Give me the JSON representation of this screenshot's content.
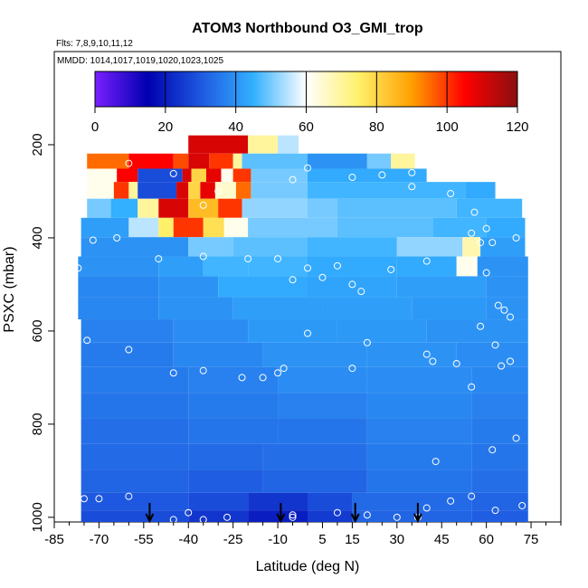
{
  "chart_data": {
    "type": "heatmap",
    "title": "ATOM3 Northbound O3_GMI_trop",
    "flights_label": "Flts: 7,8,9,10,11,12",
    "dates_label": "MMDD: 1014,1017,1019,1020,1023,1025",
    "xlabel": "Latitude (deg N)",
    "ylabel": "PSXC (mbar)",
    "xlim": [
      -85,
      85
    ],
    "ylim": [
      1010,
      0
    ],
    "x_ticks": [
      -85,
      -70,
      -55,
      -40,
      -25,
      -10,
      5,
      15,
      30,
      45,
      60,
      75
    ],
    "y_ticks": [
      200,
      400,
      600,
      800,
      1000
    ],
    "colorbar": {
      "min": 0,
      "max": 120,
      "ticks": [
        0,
        20,
        40,
        60,
        80,
        100,
        120
      ],
      "colors": [
        "#7a1fff",
        "#0000b0",
        "#1e58e0",
        "#33b0ff",
        "#ffffff",
        "#fff06a",
        "#ffa000",
        "#ff0000",
        "#8a0f0f"
      ]
    },
    "arrows_lat": [
      -53,
      -9,
      16,
      37
    ],
    "rows": [
      {
        "p": 200,
        "segments": [
          [
            -40,
            -20,
            110
          ],
          [
            -20,
            -10,
            70
          ],
          [
            -10,
            -3,
            55
          ]
        ]
      },
      {
        "p": 238,
        "segments": [
          [
            -74,
            -60,
            95
          ],
          [
            -60,
            -45,
            105
          ],
          [
            -45,
            -40,
            98
          ],
          [
            -40,
            -33,
            110
          ],
          [
            -33,
            -25,
            100
          ],
          [
            -25,
            -22,
            70
          ],
          [
            -22,
            0,
            48
          ],
          [
            0,
            20,
            40
          ],
          [
            20,
            28,
            50
          ],
          [
            28,
            36,
            70
          ]
        ]
      },
      {
        "p": 265,
        "segments": [
          [
            -74,
            -64,
            62
          ],
          [
            -64,
            -57,
            105
          ],
          [
            -57,
            -42,
            28
          ],
          [
            -42,
            -39,
            110
          ],
          [
            -39,
            -34,
            80
          ],
          [
            -34,
            -29,
            108
          ],
          [
            -29,
            -25,
            62
          ],
          [
            -25,
            -19,
            100
          ],
          [
            -19,
            0,
            50
          ],
          [
            0,
            40,
            44
          ],
          [
            40,
            53,
            60
          ]
        ]
      },
      {
        "p": 295,
        "segments": [
          [
            -74,
            -65,
            62
          ],
          [
            -65,
            -60,
            100
          ],
          [
            -60,
            -57,
            70
          ],
          [
            -57,
            -44,
            28
          ],
          [
            -44,
            -40,
            110
          ],
          [
            -40,
            -36,
            80
          ],
          [
            -36,
            -31,
            108
          ],
          [
            -31,
            -24,
            65
          ],
          [
            -24,
            -19,
            95
          ],
          [
            -19,
            0,
            50
          ],
          [
            0,
            53,
            46
          ],
          [
            53,
            63,
            44
          ]
        ]
      },
      {
        "p": 337,
        "segments": [
          [
            -74,
            -66,
            50
          ],
          [
            -66,
            -57,
            45
          ],
          [
            -57,
            -50,
            70
          ],
          [
            -50,
            -40,
            110
          ],
          [
            -40,
            -30,
            85
          ],
          [
            -30,
            -22,
            100
          ],
          [
            -22,
            0,
            52
          ],
          [
            0,
            10,
            50
          ],
          [
            10,
            50,
            48
          ],
          [
            50,
            72,
            46
          ]
        ]
      },
      {
        "p": 377,
        "segments": [
          [
            -76,
            -60,
            42
          ],
          [
            -60,
            -50,
            55
          ],
          [
            -50,
            -45,
            75
          ],
          [
            -45,
            -35,
            100
          ],
          [
            -35,
            -28,
            78
          ],
          [
            -28,
            -20,
            62
          ],
          [
            -20,
            10,
            50
          ],
          [
            10,
            42,
            48
          ],
          [
            42,
            60,
            46
          ],
          [
            60,
            73,
            44
          ]
        ]
      },
      {
        "p": 420,
        "segments": [
          [
            -76,
            -40,
            40
          ],
          [
            -40,
            -25,
            50
          ],
          [
            -25,
            0,
            48
          ],
          [
            0,
            30,
            46
          ],
          [
            30,
            52,
            52
          ],
          [
            52,
            58,
            68
          ],
          [
            58,
            73,
            42
          ]
        ]
      },
      {
        "p": 460,
        "segments": [
          [
            -77,
            -50,
            40
          ],
          [
            -50,
            -35,
            42
          ],
          [
            -35,
            -20,
            46
          ],
          [
            -20,
            0,
            46
          ],
          [
            0,
            30,
            44
          ],
          [
            30,
            50,
            44
          ],
          [
            50,
            57,
            62
          ],
          [
            57,
            74,
            40
          ]
        ]
      },
      {
        "p": 505,
        "segments": [
          [
            -77,
            -50,
            38
          ],
          [
            -50,
            -30,
            40
          ],
          [
            -30,
            0,
            44
          ],
          [
            0,
            30,
            43
          ],
          [
            30,
            60,
            42
          ],
          [
            60,
            74,
            40
          ]
        ]
      },
      {
        "p": 550,
        "segments": [
          [
            -77,
            -50,
            38
          ],
          [
            -50,
            -25,
            40
          ],
          [
            -25,
            5,
            42
          ],
          [
            5,
            35,
            42
          ],
          [
            35,
            60,
            41
          ],
          [
            60,
            74,
            40
          ]
        ]
      },
      {
        "p": 600,
        "segments": [
          [
            -76,
            -45,
            37
          ],
          [
            -45,
            -20,
            39
          ],
          [
            -20,
            10,
            41
          ],
          [
            10,
            40,
            41
          ],
          [
            40,
            74,
            40
          ]
        ]
      },
      {
        "p": 650,
        "segments": [
          [
            -76,
            -45,
            36
          ],
          [
            -45,
            -15,
            38
          ],
          [
            -15,
            20,
            40
          ],
          [
            20,
            50,
            40
          ],
          [
            50,
            74,
            39
          ]
        ]
      },
      {
        "p": 705,
        "segments": [
          [
            -76,
            -40,
            36
          ],
          [
            -40,
            -10,
            37
          ],
          [
            -10,
            20,
            39
          ],
          [
            20,
            55,
            39
          ],
          [
            55,
            74,
            38
          ]
        ]
      },
      {
        "p": 760,
        "segments": [
          [
            -76,
            -40,
            35
          ],
          [
            -40,
            -10,
            36
          ],
          [
            -10,
            20,
            37
          ],
          [
            20,
            55,
            38
          ],
          [
            55,
            74,
            37
          ]
        ]
      },
      {
        "p": 815,
        "segments": [
          [
            -76,
            -40,
            34
          ],
          [
            -40,
            -10,
            35
          ],
          [
            -10,
            20,
            35
          ],
          [
            20,
            55,
            37
          ],
          [
            55,
            74,
            36
          ]
        ]
      },
      {
        "p": 870,
        "segments": [
          [
            -76,
            -40,
            33
          ],
          [
            -40,
            -15,
            33
          ],
          [
            -15,
            20,
            34
          ],
          [
            20,
            55,
            36
          ],
          [
            55,
            74,
            35
          ]
        ]
      },
      {
        "p": 925,
        "segments": [
          [
            -76,
            -40,
            32
          ],
          [
            -40,
            -15,
            31
          ],
          [
            -15,
            20,
            32
          ],
          [
            20,
            55,
            35
          ],
          [
            55,
            74,
            34
          ]
        ]
      },
      {
        "p": 970,
        "segments": [
          [
            -76,
            -40,
            30
          ],
          [
            -40,
            -20,
            28
          ],
          [
            -20,
            0,
            24
          ],
          [
            0,
            15,
            28
          ],
          [
            15,
            55,
            33
          ],
          [
            55,
            74,
            32
          ]
        ]
      },
      {
        "p": 1000,
        "segments": [
          [
            -76,
            -40,
            28
          ],
          [
            -40,
            -20,
            24
          ],
          [
            -20,
            0,
            20
          ],
          [
            0,
            15,
            25
          ],
          [
            15,
            55,
            32
          ],
          [
            55,
            74,
            31
          ]
        ]
      }
    ],
    "points": [
      [
        -60,
        240
      ],
      [
        -45,
        262
      ],
      [
        -5,
        275
      ],
      [
        0,
        250
      ],
      [
        15,
        270
      ],
      [
        25,
        265
      ],
      [
        35,
        260
      ],
      [
        -76,
        335
      ],
      [
        -72,
        405
      ],
      [
        -64,
        400
      ],
      [
        -35,
        330
      ],
      [
        -30,
        300
      ],
      [
        35,
        290
      ],
      [
        55,
        390
      ],
      [
        60,
        380
      ],
      [
        58,
        410
      ],
      [
        62,
        410
      ],
      [
        70,
        400
      ],
      [
        56,
        345
      ],
      [
        48,
        305
      ],
      [
        -50,
        445
      ],
      [
        -35,
        440
      ],
      [
        -20,
        445
      ],
      [
        -10,
        445
      ],
      [
        0,
        465
      ],
      [
        10,
        460
      ],
      [
        -77,
        465
      ],
      [
        15,
        500
      ],
      [
        18,
        515
      ],
      [
        -5,
        490
      ],
      [
        5,
        485
      ],
      [
        40,
        450
      ],
      [
        55,
        470
      ],
      [
        60,
        475
      ],
      [
        64,
        545
      ],
      [
        66,
        555
      ],
      [
        68,
        570
      ],
      [
        -74,
        620
      ],
      [
        -60,
        640
      ],
      [
        -45,
        690
      ],
      [
        -35,
        685
      ],
      [
        -22,
        700
      ],
      [
        -15,
        700
      ],
      [
        -8,
        680
      ],
      [
        0,
        605
      ],
      [
        20,
        625
      ],
      [
        40,
        650
      ],
      [
        65,
        675
      ],
      [
        68,
        665
      ],
      [
        58,
        590
      ],
      [
        55,
        720
      ],
      [
        15,
        680
      ],
      [
        -10,
        690
      ],
      [
        42,
        665
      ],
      [
        50,
        670
      ],
      [
        28,
        468
      ],
      [
        63,
        630
      ],
      [
        -75,
        960
      ],
      [
        -70,
        960
      ],
      [
        -60,
        955
      ],
      [
        -40,
        990
      ],
      [
        -27,
        1000
      ],
      [
        -45,
        1005
      ],
      [
        -35,
        1005
      ],
      [
        -5,
        995
      ],
      [
        10,
        990
      ],
      [
        20,
        995
      ],
      [
        30,
        1000
      ],
      [
        37,
        1000
      ],
      [
        40,
        980
      ],
      [
        48,
        965
      ],
      [
        55,
        955
      ],
      [
        63,
        985
      ],
      [
        72,
        975
      ],
      [
        62,
        855
      ],
      [
        43,
        880
      ],
      [
        70,
        830
      ],
      [
        -5,
        1000
      ]
    ]
  }
}
